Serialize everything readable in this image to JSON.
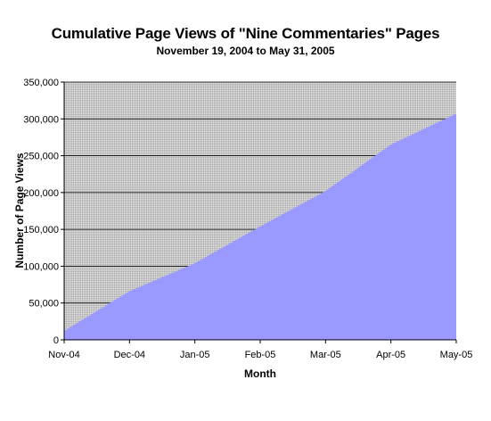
{
  "chart_data": {
    "type": "area",
    "title": "Cumulative Page Views of \"Nine Commentaries\" Pages",
    "subtitle": "November 19, 2004 to May 31, 2005",
    "xlabel": "Month",
    "ylabel": "Number of Page Views",
    "categories": [
      "Nov-04",
      "Dec-04",
      "Jan-05",
      "Feb-05",
      "Mar-05",
      "Apr-05",
      "May-05"
    ],
    "values": [
      12000,
      66000,
      104000,
      154000,
      202000,
      265000,
      307000
    ],
    "y_ticks": [
      "0",
      "50,000",
      "100,000",
      "150,000",
      "200,000",
      "250,000",
      "300,000",
      "350,000"
    ],
    "ylim": [
      0,
      350000
    ],
    "grid": true,
    "legend": "none",
    "colors": {
      "area_fill": "#9999ff",
      "plot_background": "#c0c0c0",
      "gridline": "#000000"
    }
  }
}
